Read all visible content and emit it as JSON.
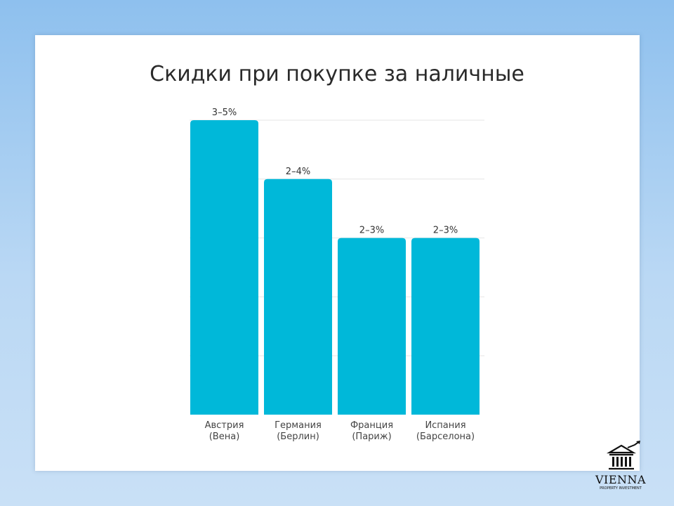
{
  "title": "Скидки при покупке за наличные",
  "colors": {
    "bar": "#00b8d9",
    "grid": "#e6e6e6"
  },
  "chart_data": {
    "type": "bar",
    "categories": [
      [
        "Австрия",
        "(Вена)"
      ],
      [
        "Германия",
        "(Берлин)"
      ],
      [
        "Франция",
        "(Париж)"
      ],
      [
        "Испания",
        "(Барселона)"
      ]
    ],
    "values": [
      5,
      4,
      3,
      3
    ],
    "data_labels": [
      "3–5%",
      "2–4%",
      "2–3%",
      "2–3%"
    ],
    "ylim": [
      0,
      5
    ],
    "grid": true,
    "xlabel": "",
    "ylabel": ""
  },
  "logo": {
    "icon": "bank-building-icon",
    "name": "VIENNA",
    "subtitle": "PROPERTY INVESTMENT"
  }
}
